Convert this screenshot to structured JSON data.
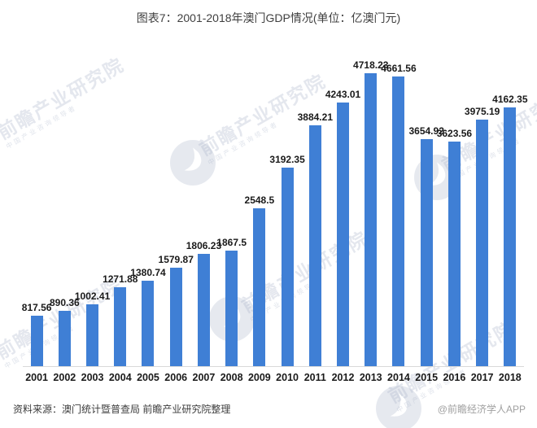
{
  "title": "图表7：2001-2018年澳门GDP情况(单位：亿澳门元)",
  "footer": {
    "source": "资料来源：澳门统计暨普查局 前瞻产业研究院整理",
    "credit": "@前瞻经济学人APP"
  },
  "watermark": {
    "logo_text": "前瞻产业研究院",
    "subtext": "中国产业咨询领导者"
  },
  "colors": {
    "bar": "#3f7fd5",
    "label": "#1a1a1a",
    "axis_line": "#d9d9d9",
    "title": "#3f3f3f",
    "credit": "#a0a0a0"
  },
  "chart_data": {
    "type": "bar",
    "title": "图表7：2001-2018年澳门GDP情况(单位：亿澳门元)",
    "unit": "亿澳门元",
    "xlabel": "",
    "ylabel": "",
    "categories": [
      "2001",
      "2002",
      "2003",
      "2004",
      "2005",
      "2006",
      "2007",
      "2008",
      "2009",
      "2010",
      "2011",
      "2012",
      "2013",
      "2014",
      "2015",
      "2016",
      "2017",
      "2018"
    ],
    "values": [
      817.56,
      890.36,
      1002.41,
      1271.88,
      1380.74,
      1579.87,
      1806.23,
      1867.5,
      2548.5,
      3192.35,
      3884.21,
      4243.01,
      4718.23,
      4661.56,
      3654.92,
      3623.56,
      3975.19,
      4162.35
    ],
    "ylim": [
      0,
      4800
    ],
    "grid": false,
    "legend_position": "none",
    "value_labels": true,
    "bar_color": "#3f7fd5"
  }
}
